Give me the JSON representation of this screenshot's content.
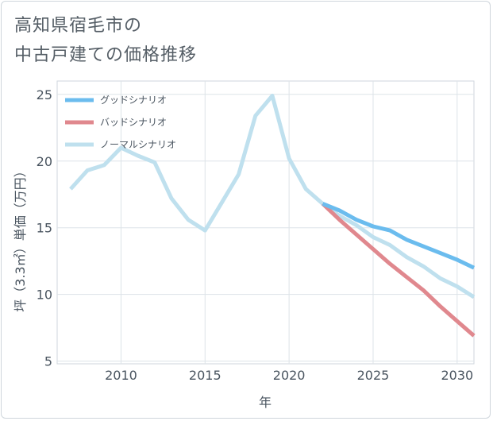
{
  "title_lines": [
    "高知県宿毛市の",
    "中古戸建ての価格推移"
  ],
  "chart_data": {
    "type": "line",
    "xlabel": "年",
    "ylabel": "坪（3.3㎡）単価（万円）",
    "xlim": [
      2006.2,
      2031
    ],
    "ylim": [
      4.8,
      26
    ],
    "x_ticks": [
      2010,
      2015,
      2020,
      2025,
      2030
    ],
    "y_ticks": [
      5,
      10,
      15,
      20,
      25
    ],
    "grid": true,
    "legend_position": "top-left",
    "series": [
      {
        "name": "グッドシナリオ",
        "color": "#6bbcee",
        "x": [
          2022,
          2023,
          2024,
          2025,
          2026,
          2027,
          2028,
          2029,
          2030,
          2031
        ],
        "y": [
          16.8,
          16.3,
          15.6,
          15.1,
          14.8,
          14.1,
          13.6,
          13.1,
          12.6,
          12.0
        ]
      },
      {
        "name": "バッドシナリオ",
        "color": "#e0888e",
        "x": [
          2022,
          2023,
          2024,
          2025,
          2026,
          2027,
          2028,
          2029,
          2030,
          2031
        ],
        "y": [
          16.8,
          15.6,
          14.5,
          13.4,
          12.3,
          11.3,
          10.3,
          9.1,
          8.0,
          6.9
        ]
      },
      {
        "name": "ノーマルシナリオ",
        "color": "#bfe0ee",
        "x": [
          2007,
          2008,
          2009,
          2010,
          2011,
          2012,
          2013,
          2014,
          2015,
          2016,
          2017,
          2018,
          2019,
          2020,
          2021,
          2022,
          2023,
          2024,
          2025,
          2026,
          2027,
          2028,
          2029,
          2030,
          2031
        ],
        "y": [
          17.9,
          19.3,
          19.7,
          21.0,
          20.4,
          19.9,
          17.2,
          15.6,
          14.8,
          16.9,
          19.0,
          23.4,
          24.9,
          20.2,
          17.9,
          16.8,
          15.9,
          15.2,
          14.3,
          13.7,
          12.8,
          12.1,
          11.2,
          10.6,
          9.8
        ]
      }
    ]
  }
}
